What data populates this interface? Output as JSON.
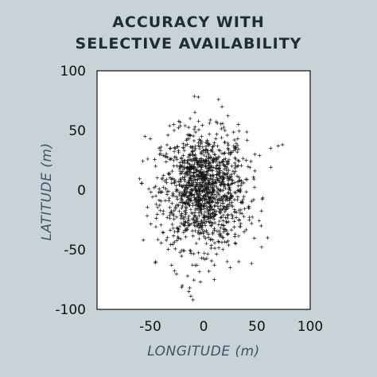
{
  "chart_data": {
    "type": "scatter",
    "title_line1": "ACCURACY WITH",
    "title_line2": "SELECTIVE AVAILABILITY",
    "xlabel": "LONGITUDE (m)",
    "ylabel": "LATITUDE (m)",
    "xlim": [
      -100,
      100
    ],
    "ylim": [
      -100,
      100
    ],
    "x_ticks": [
      -50,
      0,
      50,
      100
    ],
    "y_ticks": [
      100,
      50,
      0,
      -50,
      -100
    ],
    "x_tick_labels": [
      "-50",
      "0",
      "50",
      "100"
    ],
    "y_tick_labels": [
      "100",
      "50",
      "0",
      "-50",
      "-100"
    ],
    "corner_label": "-100",
    "marker": "+",
    "marker_color": "#111111",
    "plot_background": "#ffffff",
    "grid": false,
    "distribution": {
      "center": [
        0,
        0
      ],
      "sd_x": 20,
      "sd_y": 24,
      "count": 1300
    },
    "outliers": [
      {
        "x": -5,
        "y": 78
      },
      {
        "x": 14,
        "y": 76
      },
      {
        "x": -55,
        "y": 45
      },
      {
        "x": -50,
        "y": 43
      },
      {
        "x": -28,
        "y": 55
      },
      {
        "x": -22,
        "y": 57
      },
      {
        "x": 70,
        "y": 37
      },
      {
        "x": 74,
        "y": 38
      },
      {
        "x": 63,
        "y": 35
      },
      {
        "x": 48,
        "y": 30
      },
      {
        "x": 60,
        "y": -40
      },
      {
        "x": 54,
        "y": -30
      },
      {
        "x": 45,
        "y": -28
      },
      {
        "x": -45,
        "y": -60
      },
      {
        "x": -35,
        "y": -42
      },
      {
        "x": -30,
        "y": -63
      },
      {
        "x": -15,
        "y": -72
      },
      {
        "x": -20,
        "y": -80
      },
      {
        "x": -14,
        "y": -85
      },
      {
        "x": -12,
        "y": -89
      },
      {
        "x": -10,
        "y": -92
      },
      {
        "x": -13,
        "y": -82
      },
      {
        "x": 10,
        "y": -75
      },
      {
        "x": 25,
        "y": -65
      },
      {
        "x": 33,
        "y": -60
      },
      {
        "x": 5,
        "y": -68
      },
      {
        "x": -3,
        "y": -77
      },
      {
        "x": 29,
        "y": 42
      },
      {
        "x": 40,
        "y": 25
      },
      {
        "x": -40,
        "y": 36
      },
      {
        "x": -45,
        "y": 20
      },
      {
        "x": 20,
        "y": 50
      },
      {
        "x": 38,
        "y": -35
      },
      {
        "x": 42,
        "y": -15
      },
      {
        "x": -38,
        "y": -20
      },
      {
        "x": 30,
        "y": -45
      }
    ]
  }
}
